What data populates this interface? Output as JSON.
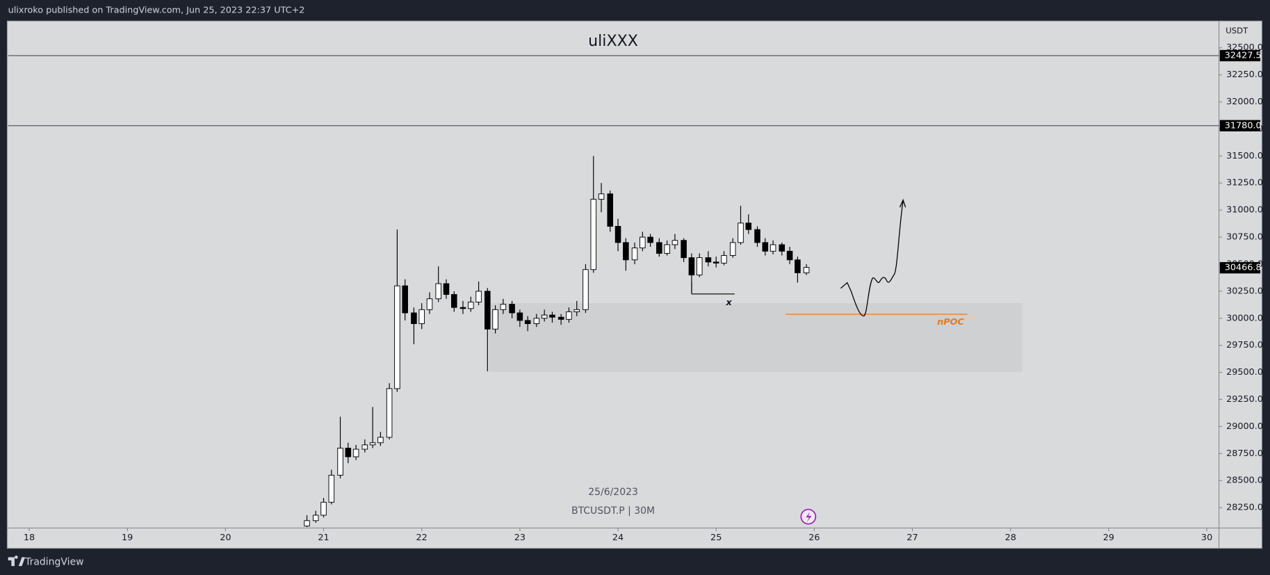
{
  "header": {
    "text": "ulixroko published on TradingView.com, Jun 25, 2023 22:37 UTC+2"
  },
  "footer": {
    "brand": "TradingView"
  },
  "chart_data": {
    "type": "candlestick",
    "title": "uliXXX",
    "watermark_date": "25/6/2023",
    "watermark_symbol": "BTCUSDT.P | 30M",
    "y_unit": "USDT",
    "grid": false,
    "up_color": "#ffffff",
    "down_color": "#000000",
    "wick_color": "#000000",
    "xlim": [
      17.785,
      30.124
    ],
    "xticks": [
      18,
      19,
      20,
      21,
      22,
      23,
      24,
      25,
      26,
      27,
      28,
      29,
      30
    ],
    "ylim": [
      28069,
      32747
    ],
    "yticks": [
      {
        "value": 28250,
        "label": "28250.0"
      },
      {
        "value": 28500,
        "label": "28500.0"
      },
      {
        "value": 28750,
        "label": "28750.0"
      },
      {
        "value": 29000,
        "label": "29000.0"
      },
      {
        "value": 29250,
        "label": "29250.0"
      },
      {
        "value": 29500,
        "label": "29500.0"
      },
      {
        "value": 29750,
        "label": "29750.0"
      },
      {
        "value": 30000,
        "label": "30000.0"
      },
      {
        "value": 30250,
        "label": "30250.0"
      },
      {
        "value": 30500,
        "label": "30500.0"
      },
      {
        "value": 30750,
        "label": "30750.0"
      },
      {
        "value": 31000,
        "label": "31000.0"
      },
      {
        "value": 31250,
        "label": "31250.0"
      },
      {
        "value": 31500,
        "label": "31500.0"
      },
      {
        "value": 31750,
        "label": "31750.0"
      },
      {
        "value": 32000,
        "label": "32000.0"
      },
      {
        "value": 32250,
        "label": "32250.0"
      },
      {
        "value": 32500,
        "label": "32500.0"
      }
    ],
    "hlines": [
      {
        "value": 32427.5,
        "label": "32427.5"
      },
      {
        "value": 31780,
        "label": "31780.0"
      }
    ],
    "last_price": {
      "value": 30466.8,
      "label": "30466.8"
    },
    "zone": {
      "x": [
        22.69,
        28.12
      ],
      "y": [
        29505,
        30140
      ],
      "color": "#cfd0d2"
    },
    "npoc": {
      "label": "nPOC",
      "value": 30037,
      "x": [
        25.71,
        27.56
      ],
      "color": "#e07b24"
    },
    "x": [
      20.83,
      20.92,
      21.0,
      21.08,
      21.17,
      21.25,
      21.33,
      21.42,
      21.5,
      21.58,
      21.67,
      21.75,
      21.83,
      21.92,
      22.0,
      22.08,
      22.17,
      22.25,
      22.33,
      22.42,
      22.5,
      22.58,
      22.67,
      22.75,
      22.83,
      22.92,
      23.0,
      23.08,
      23.17,
      23.25,
      23.33,
      23.42,
      23.5,
      23.58,
      23.67,
      23.75,
      23.83,
      23.92,
      24.0,
      24.08,
      24.17,
      24.25,
      24.33,
      24.42,
      24.5,
      24.58,
      24.67,
      24.75,
      24.83,
      24.92,
      25.0,
      25.08,
      25.17,
      25.25,
      25.33,
      25.42,
      25.5,
      25.58,
      25.67,
      25.75,
      25.83,
      25.92
    ],
    "open": [
      28080,
      28130,
      28180,
      28300,
      28550,
      28800,
      28720,
      28790,
      28830,
      28850,
      28900,
      29350,
      30300,
      30050,
      29950,
      30080,
      30180,
      30320,
      30220,
      30100,
      30090,
      30150,
      30250,
      29900,
      30080,
      30130,
      30050,
      29980,
      29950,
      30000,
      30030,
      30010,
      29990,
      30060,
      30080,
      30450,
      31100,
      31150,
      30850,
      30700,
      30540,
      30650,
      30750,
      30700,
      30600,
      30680,
      30720,
      30560,
      30400,
      30560,
      30520,
      30510,
      30580,
      30700,
      30880,
      30820,
      30700,
      30620,
      30680,
      30620,
      30540,
      30420
    ],
    "high": [
      28180,
      28220,
      28340,
      28600,
      29090,
      28850,
      28830,
      28880,
      29180,
      28950,
      29400,
      30820,
      30360,
      30100,
      30140,
      30240,
      30480,
      30360,
      30250,
      30160,
      30200,
      30340,
      30280,
      30120,
      30180,
      30160,
      30080,
      30020,
      30040,
      30080,
      30060,
      30040,
      30100,
      30160,
      30500,
      31500,
      31250,
      31180,
      30920,
      30740,
      30700,
      30800,
      30780,
      30740,
      30720,
      30780,
      30740,
      30600,
      30600,
      30620,
      30570,
      30620,
      30740,
      31040,
      30960,
      30850,
      30740,
      30720,
      30700,
      30660,
      30570,
      30500
    ],
    "low": [
      28070,
      28110,
      28160,
      28280,
      28520,
      28660,
      28690,
      28760,
      28800,
      28820,
      28880,
      29320,
      29980,
      29760,
      29900,
      30040,
      30150,
      30180,
      30060,
      30040,
      30060,
      30120,
      29510,
      29860,
      30040,
      30000,
      29920,
      29880,
      29920,
      29970,
      29960,
      29940,
      29960,
      30020,
      30050,
      30420,
      30980,
      30800,
      30620,
      30440,
      30500,
      30620,
      30660,
      30570,
      30580,
      30640,
      30520,
      30240,
      30380,
      30480,
      30470,
      30490,
      30560,
      30680,
      30780,
      30660,
      30580,
      30590,
      30580,
      30500,
      30330,
      30400
    ],
    "close": [
      28130,
      28180,
      28300,
      28550,
      28800,
      28720,
      28790,
      28830,
      28850,
      28900,
      29350,
      30300,
      30050,
      29950,
      30080,
      30180,
      30320,
      30220,
      30100,
      30090,
      30150,
      30250,
      29900,
      30080,
      30130,
      30050,
      29980,
      29950,
      30000,
      30030,
      30010,
      29990,
      30060,
      30080,
      30450,
      31100,
      31150,
      30850,
      30700,
      30540,
      30650,
      30750,
      30700,
      30600,
      30680,
      30720,
      30560,
      30400,
      30560,
      30520,
      30510,
      30580,
      30700,
      30880,
      30820,
      30700,
      30620,
      30680,
      30620,
      30540,
      30420,
      30470
    ]
  }
}
